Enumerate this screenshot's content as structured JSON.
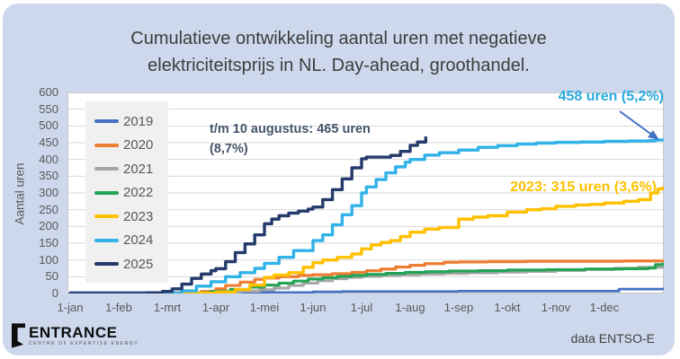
{
  "title": {
    "line1": "Cumulatieve ontwikkeling aantal uren met negatieve",
    "line2": "elektriciteitsprijs in NL. Day-ahead, groothandel."
  },
  "annotations": {
    "note_2025_line1": "t/m 10 augustus: 465 uren",
    "note_2025_line2": "(8,7%)",
    "note_2024": "458 uren (5,2%)",
    "note_2023": "2023: 315 uren (3,6%)"
  },
  "footer": {
    "logo_name": "ENTRANCE",
    "logo_sub": "CENTRE OF EXPERTISE ENERGY",
    "source": "data ENTSO-E"
  },
  "colors": {
    "card_background": "#cdd8ec",
    "plot_background": "#ffffff",
    "gridline": "#d9d9d9",
    "axis_text": "#595959",
    "title_text": "#3d3d3d",
    "annotation_2025": "#44546A",
    "annotation_2024": "#2aabdf",
    "annotation_2023": "#FFC000",
    "arrow": "#4472C4"
  },
  "chart_data": {
    "type": "line",
    "title": "Cumulatieve ontwikkeling aantal uren met negatieve elektriciteitsprijs in NL. Day-ahead, groothandel.",
    "ylabel": "Aantal uren",
    "ylim": [
      0,
      600
    ],
    "y_tick_step": 50,
    "grid": "horizontal",
    "legend_position": "inside-upper-left",
    "x_unit": "months since 1-jan (0 = 1-jan, 12 = 31-dec)",
    "x_ticks": [
      "1-jan",
      "1-feb",
      "1-mrt",
      "1-apr",
      "1-mei",
      "1-jun",
      "1-jul",
      "1-aug",
      "1-sep",
      "1-okt",
      "1-nov",
      "1-dec"
    ],
    "line_style": "step-after",
    "series": [
      {
        "name": "2019",
        "color": "#4472C4",
        "width": 2.8,
        "points": [
          [
            0,
            3
          ],
          [
            4.9,
            3
          ],
          [
            5,
            5
          ],
          [
            5.6,
            6
          ],
          [
            8,
            7
          ],
          [
            10.9,
            7
          ],
          [
            11.3,
            13
          ],
          [
            12.2,
            14
          ]
        ]
      },
      {
        "name": "2020",
        "color": "#ED7D31",
        "width": 3.2,
        "points": [
          [
            0,
            0
          ],
          [
            2.2,
            2
          ],
          [
            2.7,
            6
          ],
          [
            3,
            14
          ],
          [
            3.2,
            24
          ],
          [
            3.5,
            34
          ],
          [
            3.8,
            42
          ],
          [
            4,
            46
          ],
          [
            4.3,
            50
          ],
          [
            4.7,
            54
          ],
          [
            5,
            56
          ],
          [
            5.4,
            59
          ],
          [
            5.8,
            63
          ],
          [
            6.1,
            68
          ],
          [
            6.4,
            73
          ],
          [
            6.7,
            79
          ],
          [
            7,
            84
          ],
          [
            7.3,
            89
          ],
          [
            7.7,
            93
          ],
          [
            8,
            94
          ],
          [
            8.6,
            95
          ],
          [
            9.4,
            96
          ],
          [
            10.5,
            96
          ],
          [
            11.4,
            97
          ],
          [
            12.2,
            97
          ]
        ]
      },
      {
        "name": "2021",
        "color": "#A6A6A6",
        "width": 3.2,
        "points": [
          [
            0,
            0
          ],
          [
            2.7,
            1
          ],
          [
            3.1,
            4
          ],
          [
            3.5,
            7
          ],
          [
            3.9,
            11
          ],
          [
            4.2,
            16
          ],
          [
            4.5,
            24
          ],
          [
            4.8,
            31
          ],
          [
            5.1,
            38
          ],
          [
            5.4,
            44
          ],
          [
            5.7,
            48
          ],
          [
            6,
            51
          ],
          [
            6.4,
            54
          ],
          [
            6.8,
            56
          ],
          [
            7.2,
            58
          ],
          [
            7.7,
            60
          ],
          [
            8.2,
            62
          ],
          [
            8.8,
            64
          ],
          [
            9.4,
            66
          ],
          [
            10,
            69
          ],
          [
            10.6,
            72
          ],
          [
            11.2,
            75
          ],
          [
            11.7,
            78
          ],
          [
            12.2,
            80
          ]
        ]
      },
      {
        "name": "2022",
        "color": "#23A455",
        "width": 3.2,
        "points": [
          [
            0,
            0
          ],
          [
            2.5,
            2
          ],
          [
            2.9,
            6
          ],
          [
            3.3,
            12
          ],
          [
            3.7,
            19
          ],
          [
            4,
            25
          ],
          [
            4.3,
            31
          ],
          [
            4.6,
            37
          ],
          [
            4.9,
            43
          ],
          [
            5.2,
            47
          ],
          [
            5.5,
            51
          ],
          [
            5.8,
            54
          ],
          [
            6.1,
            57
          ],
          [
            6.5,
            60
          ],
          [
            6.9,
            63
          ],
          [
            7.3,
            65
          ],
          [
            7.8,
            67
          ],
          [
            8.4,
            68
          ],
          [
            9,
            70
          ],
          [
            9.8,
            71
          ],
          [
            10.6,
            73
          ],
          [
            11.4,
            74
          ],
          [
            11.9,
            76
          ],
          [
            12.05,
            86
          ],
          [
            12.2,
            88
          ]
        ]
      },
      {
        "name": "2023",
        "color": "#FFC000",
        "width": 3.4,
        "points": [
          [
            0,
            0
          ],
          [
            2,
            1
          ],
          [
            3,
            4
          ],
          [
            3.4,
            12
          ],
          [
            3.7,
            25
          ],
          [
            4,
            48
          ],
          [
            4.2,
            55
          ],
          [
            4.5,
            62
          ],
          [
            4.8,
            78
          ],
          [
            5,
            92
          ],
          [
            5.2,
            100
          ],
          [
            5.5,
            108
          ],
          [
            5.8,
            118
          ],
          [
            6,
            133
          ],
          [
            6.2,
            145
          ],
          [
            6.4,
            152
          ],
          [
            6.6,
            158
          ],
          [
            6.8,
            170
          ],
          [
            7,
            183
          ],
          [
            7.3,
            192
          ],
          [
            7.6,
            197
          ],
          [
            8,
            222
          ],
          [
            8.3,
            228
          ],
          [
            8.6,
            232
          ],
          [
            9,
            243
          ],
          [
            9.4,
            250
          ],
          [
            9.7,
            253
          ],
          [
            10,
            260
          ],
          [
            10.4,
            264
          ],
          [
            10.7,
            266
          ],
          [
            11,
            270
          ],
          [
            11.4,
            275
          ],
          [
            11.7,
            280
          ],
          [
            11.95,
            300
          ],
          [
            12.1,
            312
          ],
          [
            12.2,
            315
          ]
        ]
      },
      {
        "name": "2024",
        "color": "#31B2E8",
        "width": 3.4,
        "points": [
          [
            0,
            0
          ],
          [
            2,
            1
          ],
          [
            2.3,
            8
          ],
          [
            2.6,
            22
          ],
          [
            2.9,
            35
          ],
          [
            3.2,
            50
          ],
          [
            3.5,
            62
          ],
          [
            3.8,
            75
          ],
          [
            4,
            90
          ],
          [
            4.3,
            108
          ],
          [
            4.6,
            128
          ],
          [
            5,
            158
          ],
          [
            5.2,
            175
          ],
          [
            5.4,
            205
          ],
          [
            5.6,
            235
          ],
          [
            5.8,
            262
          ],
          [
            6,
            300
          ],
          [
            6.1,
            318
          ],
          [
            6.3,
            340
          ],
          [
            6.5,
            360
          ],
          [
            6.7,
            378
          ],
          [
            6.9,
            392
          ],
          [
            7,
            400
          ],
          [
            7.3,
            413
          ],
          [
            7.6,
            420
          ],
          [
            8,
            428
          ],
          [
            8.4,
            436
          ],
          [
            8.8,
            441
          ],
          [
            9.2,
            446
          ],
          [
            9.6,
            449
          ],
          [
            10,
            451
          ],
          [
            10.5,
            452
          ],
          [
            11,
            454
          ],
          [
            11.5,
            455
          ],
          [
            11.9,
            456
          ],
          [
            12.05,
            458
          ],
          [
            12.2,
            458
          ]
        ]
      },
      {
        "name": "2025",
        "color": "#243A6B",
        "width": 3.4,
        "points": [
          [
            0,
            0
          ],
          [
            1.6,
            2
          ],
          [
            1.9,
            6
          ],
          [
            2.1,
            14
          ],
          [
            2.3,
            28
          ],
          [
            2.5,
            45
          ],
          [
            2.7,
            58
          ],
          [
            2.9,
            68
          ],
          [
            3,
            74
          ],
          [
            3.2,
            95
          ],
          [
            3.4,
            122
          ],
          [
            3.6,
            148
          ],
          [
            3.8,
            175
          ],
          [
            4,
            208
          ],
          [
            4.15,
            222
          ],
          [
            4.3,
            232
          ],
          [
            4.5,
            240
          ],
          [
            4.7,
            246
          ],
          [
            4.9,
            252
          ],
          [
            5,
            258
          ],
          [
            5.2,
            280
          ],
          [
            5.4,
            310
          ],
          [
            5.6,
            342
          ],
          [
            5.8,
            375
          ],
          [
            6,
            402
          ],
          [
            6.1,
            407
          ],
          [
            6.4,
            407
          ],
          [
            6.6,
            412
          ],
          [
            6.8,
            424
          ],
          [
            7,
            442
          ],
          [
            7.15,
            452
          ],
          [
            7.32,
            465
          ]
        ]
      }
    ]
  }
}
